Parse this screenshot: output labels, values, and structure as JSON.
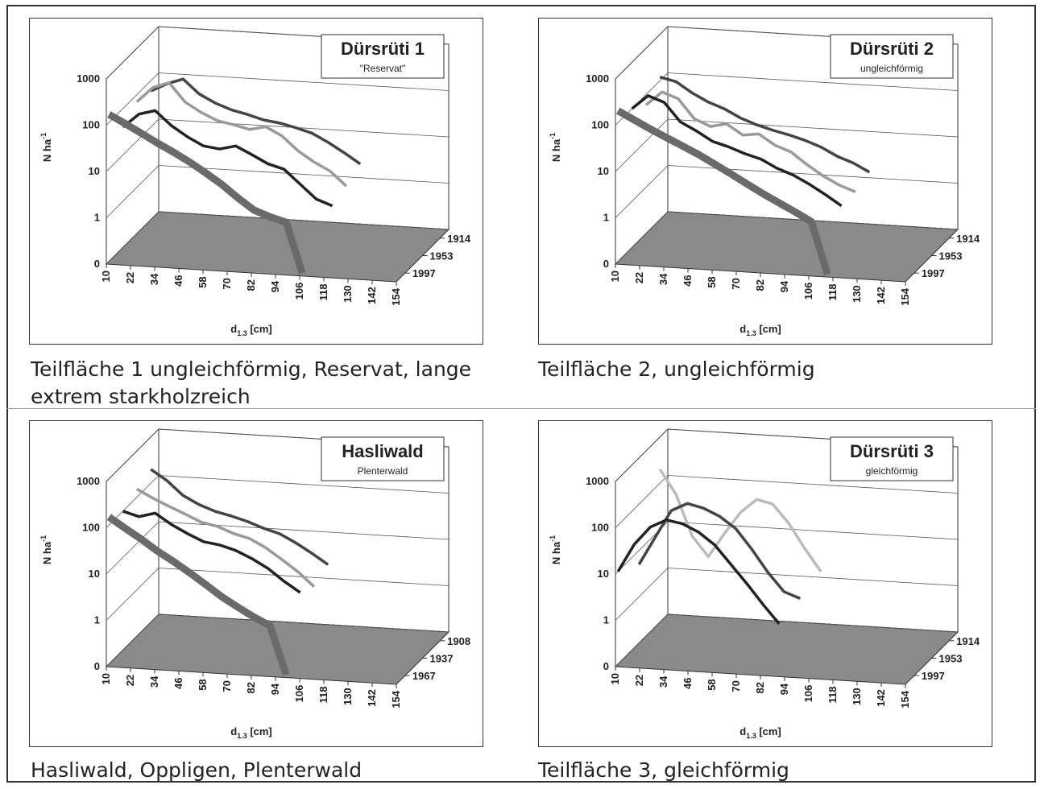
{
  "chart_data": [
    {
      "type": "line",
      "title": "Dürsrüti 1",
      "subtitle": "\"Reservat\"",
      "ylabel": {
        "main": "N ha",
        "sup": "-1"
      },
      "xlabel": {
        "main": "d",
        "sub": "1.3",
        "unit": " [cm]"
      },
      "log": true,
      "ylim": [
        0,
        1000
      ],
      "yticks": [
        0,
        1,
        10,
        100,
        1000
      ],
      "xlim": [
        10,
        154
      ],
      "xticks": [
        10,
        22,
        34,
        46,
        58,
        70,
        82,
        94,
        106,
        118,
        130,
        142,
        154
      ],
      "zticks": [
        1914,
        1953,
        1997
      ],
      "series": [
        {
          "color": "#444444",
          "x": [
            10,
            18,
            26,
            34,
            42,
            50,
            58,
            66,
            74,
            82,
            90,
            98,
            106,
            114
          ],
          "values": [
            60,
            90,
            120,
            60,
            40,
            30,
            25,
            20,
            18,
            15,
            12,
            8,
            5,
            3
          ]
        },
        {
          "color": "#999999",
          "x": [
            10,
            18,
            26,
            34,
            42,
            50,
            58,
            66,
            74,
            82,
            90,
            98,
            106,
            114
          ],
          "values": [
            70,
            150,
            200,
            80,
            50,
            35,
            30,
            25,
            30,
            20,
            10,
            6,
            4,
            2
          ]
        },
        {
          "color": "#222222",
          "x": [
            10,
            18,
            26,
            34,
            42,
            50,
            58,
            66,
            74,
            82,
            90,
            98,
            106,
            114
          ],
          "values": [
            40,
            80,
            100,
            50,
            30,
            20,
            18,
            22,
            15,
            10,
            8,
            4,
            2,
            1.5
          ]
        },
        {
          "color": "#6a6a6a",
          "x": [
            10,
            18,
            26,
            34,
            42,
            50,
            58,
            66,
            74,
            82,
            90,
            98,
            106
          ],
          "values": [
            150,
            100,
            65,
            42,
            28,
            18,
            11,
            6.5,
            3.5,
            2,
            1.5,
            1.2,
            0
          ]
        }
      ],
      "caption": "Teilfläche 1 ungleichförmig, Reservat, lange extrem starkholzreich"
    },
    {
      "type": "line",
      "title": "Dürsrüti 2",
      "subtitle": "ungleichförmig",
      "ylabel": {
        "main": "N ha",
        "sup": "-1"
      },
      "xlabel": {
        "main": "d",
        "sub": "1.3",
        "unit": " [cm]"
      },
      "log": true,
      "ylim": [
        0,
        1000
      ],
      "yticks": [
        0,
        1,
        10,
        100,
        1000
      ],
      "xlim": [
        10,
        154
      ],
      "xticks": [
        10,
        22,
        34,
        46,
        58,
        70,
        82,
        94,
        106,
        118,
        130,
        142,
        154
      ],
      "zticks": [
        1914,
        1953,
        1997
      ],
      "series": [
        {
          "color": "#444444",
          "x": [
            10,
            18,
            26,
            34,
            42,
            50,
            58,
            66,
            74,
            82,
            90,
            98,
            106,
            114
          ],
          "values": [
            120,
            100,
            60,
            40,
            30,
            20,
            15,
            12,
            10,
            8,
            6,
            4,
            3,
            2
          ]
        },
        {
          "color": "#999999",
          "x": [
            10,
            18,
            26,
            34,
            42,
            50,
            58,
            66,
            74,
            82,
            90,
            98,
            106,
            114
          ],
          "values": [
            60,
            120,
            90,
            35,
            25,
            30,
            18,
            20,
            12,
            9,
            5,
            3,
            2,
            1.5
          ]
        },
        {
          "color": "#222222",
          "x": [
            10,
            18,
            26,
            34,
            42,
            50,
            58,
            66,
            74,
            82,
            90,
            98,
            106,
            114
          ],
          "values": [
            100,
            200,
            150,
            60,
            40,
            25,
            20,
            15,
            12,
            8,
            6,
            4,
            2.5,
            1.5
          ]
        },
        {
          "color": "#6a6a6a",
          "x": [
            10,
            18,
            26,
            34,
            42,
            50,
            58,
            66,
            74,
            82,
            90,
            98,
            106,
            114
          ],
          "values": [
            180,
            120,
            80,
            55,
            38,
            26,
            17,
            11,
            7,
            4.5,
            3,
            2,
            1.3,
            0
          ]
        }
      ],
      "caption": "Teilfläche 2, ungleichförmig"
    },
    {
      "type": "line",
      "title": "Hasliwald",
      "subtitle": "Plenterwald",
      "ylabel": {
        "main": "N ha",
        "sup": "-1"
      },
      "xlabel": {
        "main": "d",
        "sub": "1.3",
        "unit": " [cm]"
      },
      "log": true,
      "ylim": [
        0,
        1000
      ],
      "yticks": [
        0,
        1,
        10,
        100,
        1000
      ],
      "xlim": [
        10,
        154
      ],
      "xticks": [
        10,
        22,
        34,
        46,
        58,
        70,
        82,
        94,
        106,
        118,
        130,
        142,
        154
      ],
      "zticks": [
        1908,
        1937,
        1967
      ],
      "series": [
        {
          "color": "#444444",
          "x": [
            10,
            18,
            26,
            34,
            42,
            50,
            58,
            66,
            74,
            82,
            90,
            98
          ],
          "values": [
            200,
            120,
            60,
            40,
            30,
            25,
            20,
            15,
            12,
            8,
            5,
            3
          ]
        },
        {
          "color": "#999999",
          "x": [
            10,
            18,
            26,
            34,
            42,
            50,
            58,
            66,
            74,
            82,
            90,
            98
          ],
          "values": [
            150,
            100,
            70,
            50,
            35,
            30,
            22,
            18,
            12,
            7,
            4,
            2
          ]
        },
        {
          "color": "#222222",
          "x": [
            10,
            18,
            26,
            34,
            42,
            50,
            58,
            66,
            74,
            82,
            90,
            98
          ],
          "values": [
            100,
            80,
            100,
            60,
            40,
            28,
            25,
            20,
            14,
            9,
            5,
            3
          ]
        },
        {
          "color": "#6a6a6a",
          "x": [
            10,
            18,
            26,
            34,
            42,
            50,
            58,
            66,
            74,
            82,
            90,
            98
          ],
          "values": [
            150,
            90,
            55,
            32,
            20,
            12,
            7,
            4,
            2.5,
            1.6,
            1.1,
            0
          ]
        }
      ],
      "caption": "Hasliwald, Oppligen, Plenterwald"
    },
    {
      "type": "line",
      "title": "Dürsrüti 3",
      "subtitle": "gleichförmig",
      "ylabel": {
        "main": "N ha",
        "sup": "-1"
      },
      "xlabel": {
        "main": "d",
        "sub": "1.3",
        "unit": " [cm]"
      },
      "log": true,
      "ylim": [
        0,
        1000
      ],
      "yticks": [
        0,
        1,
        10,
        100,
        1000
      ],
      "xlim": [
        10,
        154
      ],
      "xticks": [
        10,
        22,
        34,
        46,
        58,
        70,
        82,
        94,
        106,
        118,
        130,
        142,
        154
      ],
      "zticks": [
        1914,
        1953,
        1997
      ],
      "series": [
        {
          "color": "#bbbbbb",
          "x": [
            10,
            18,
            26,
            34,
            42,
            50,
            58,
            66,
            74,
            82,
            90
          ],
          "values": [
            200,
            60,
            8,
            3,
            10,
            30,
            60,
            50,
            20,
            6,
            2
          ]
        },
        {
          "color": "#444444",
          "x": [
            10,
            18,
            26,
            34,
            42,
            50,
            58,
            66,
            74,
            82,
            90
          ],
          "values": [
            5,
            20,
            80,
            120,
            100,
            70,
            40,
            15,
            5,
            2,
            1.5
          ]
        },
        {
          "color": "#222222",
          "x": [
            10,
            18,
            26,
            34,
            42,
            50,
            58,
            66,
            74,
            82,
            90
          ],
          "values": [
            10,
            40,
            100,
            150,
            130,
            90,
            50,
            20,
            8,
            3,
            1.2
          ]
        }
      ],
      "caption": "Teilfläche 3, gleichförmig"
    }
  ]
}
